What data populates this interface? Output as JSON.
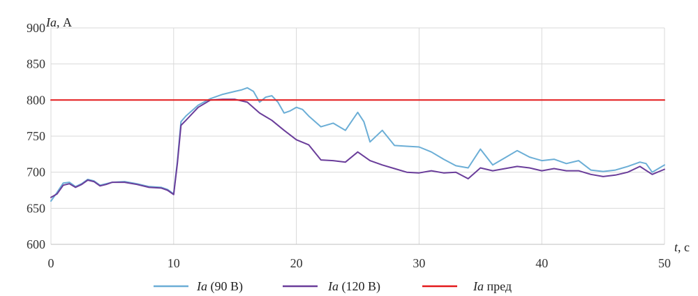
{
  "chart_data": {
    "type": "line",
    "ylabel_var": "Ia",
    "ylabel_unit": ", А",
    "xlabel_var": "t",
    "xlabel_unit": ", с",
    "xlim": [
      0,
      50
    ],
    "ylim": [
      600,
      900
    ],
    "xticks": [
      "0",
      "10",
      "20",
      "30",
      "40",
      "50"
    ],
    "yticks": [
      "600",
      "650",
      "700",
      "750",
      "800",
      "850",
      "900"
    ],
    "grid": true,
    "legend_position": "bottom",
    "series": [
      {
        "name_var": "Ia",
        "name_rest": " (90 В)",
        "color": "#6baed6",
        "points": [
          [
            0,
            660
          ],
          [
            0.5,
            672
          ],
          [
            1,
            685
          ],
          [
            1.5,
            686
          ],
          [
            2,
            680
          ],
          [
            2.5,
            684
          ],
          [
            3,
            690
          ],
          [
            3.5,
            688
          ],
          [
            4,
            682
          ],
          [
            4.5,
            684
          ],
          [
            5,
            686
          ],
          [
            6,
            687
          ],
          [
            7,
            684
          ],
          [
            8,
            680
          ],
          [
            9,
            679
          ],
          [
            9.5,
            676
          ],
          [
            10,
            670
          ],
          [
            10.3,
            715
          ],
          [
            10.6,
            770
          ],
          [
            11,
            778
          ],
          [
            12,
            793
          ],
          [
            13,
            802
          ],
          [
            14,
            808
          ],
          [
            15,
            812
          ],
          [
            15.5,
            814
          ],
          [
            16,
            817
          ],
          [
            16.5,
            812
          ],
          [
            17,
            797
          ],
          [
            17.5,
            804
          ],
          [
            18,
            806
          ],
          [
            18.5,
            797
          ],
          [
            19,
            782
          ],
          [
            19.5,
            785
          ],
          [
            20,
            790
          ],
          [
            20.5,
            787
          ],
          [
            21,
            778
          ],
          [
            22,
            763
          ],
          [
            23,
            768
          ],
          [
            24,
            758
          ],
          [
            25,
            783
          ],
          [
            25.5,
            770
          ],
          [
            26,
            742
          ],
          [
            27,
            758
          ],
          [
            28,
            737
          ],
          [
            29,
            736
          ],
          [
            30,
            735
          ],
          [
            31,
            728
          ],
          [
            32,
            718
          ],
          [
            33,
            709
          ],
          [
            34,
            706
          ],
          [
            35,
            732
          ],
          [
            36,
            710
          ],
          [
            37,
            720
          ],
          [
            38,
            730
          ],
          [
            39,
            721
          ],
          [
            40,
            716
          ],
          [
            41,
            718
          ],
          [
            42,
            712
          ],
          [
            43,
            716
          ],
          [
            44,
            703
          ],
          [
            45,
            701
          ],
          [
            46,
            703
          ],
          [
            47,
            708
          ],
          [
            48,
            714
          ],
          [
            48.5,
            712
          ],
          [
            49,
            700
          ],
          [
            49.5,
            705
          ],
          [
            50,
            710
          ]
        ]
      },
      {
        "name_var": "Ia",
        "name_rest": " (120 В)",
        "color": "#6a3d9a",
        "points": [
          [
            0,
            665
          ],
          [
            0.5,
            670
          ],
          [
            1,
            682
          ],
          [
            1.5,
            684
          ],
          [
            2,
            679
          ],
          [
            2.5,
            683
          ],
          [
            3,
            689
          ],
          [
            3.5,
            687
          ],
          [
            4,
            681
          ],
          [
            4.5,
            683
          ],
          [
            5,
            686
          ],
          [
            6,
            686
          ],
          [
            7,
            683
          ],
          [
            8,
            679
          ],
          [
            9,
            678
          ],
          [
            9.5,
            675
          ],
          [
            10,
            669
          ],
          [
            10.3,
            712
          ],
          [
            10.6,
            765
          ],
          [
            11,
            772
          ],
          [
            12,
            790
          ],
          [
            13,
            800
          ],
          [
            14,
            801
          ],
          [
            15,
            801
          ],
          [
            16,
            797
          ],
          [
            17,
            782
          ],
          [
            18,
            772
          ],
          [
            19,
            758
          ],
          [
            20,
            745
          ],
          [
            21,
            738
          ],
          [
            22,
            717
          ],
          [
            23,
            716
          ],
          [
            24,
            714
          ],
          [
            25,
            728
          ],
          [
            26,
            716
          ],
          [
            27,
            710
          ],
          [
            28,
            705
          ],
          [
            29,
            700
          ],
          [
            30,
            699
          ],
          [
            31,
            702
          ],
          [
            32,
            699
          ],
          [
            33,
            700
          ],
          [
            34,
            691
          ],
          [
            35,
            706
          ],
          [
            36,
            702
          ],
          [
            37,
            705
          ],
          [
            38,
            708
          ],
          [
            39,
            706
          ],
          [
            40,
            702
          ],
          [
            41,
            705
          ],
          [
            42,
            702
          ],
          [
            43,
            702
          ],
          [
            44,
            697
          ],
          [
            45,
            694
          ],
          [
            46,
            696
          ],
          [
            47,
            700
          ],
          [
            48,
            708
          ],
          [
            49,
            697
          ],
          [
            50,
            704
          ]
        ]
      },
      {
        "name_var": "Ia",
        "name_rest": " пред",
        "color": "#e31a1c",
        "points": [
          [
            0,
            800
          ],
          [
            50,
            800
          ]
        ]
      }
    ]
  }
}
